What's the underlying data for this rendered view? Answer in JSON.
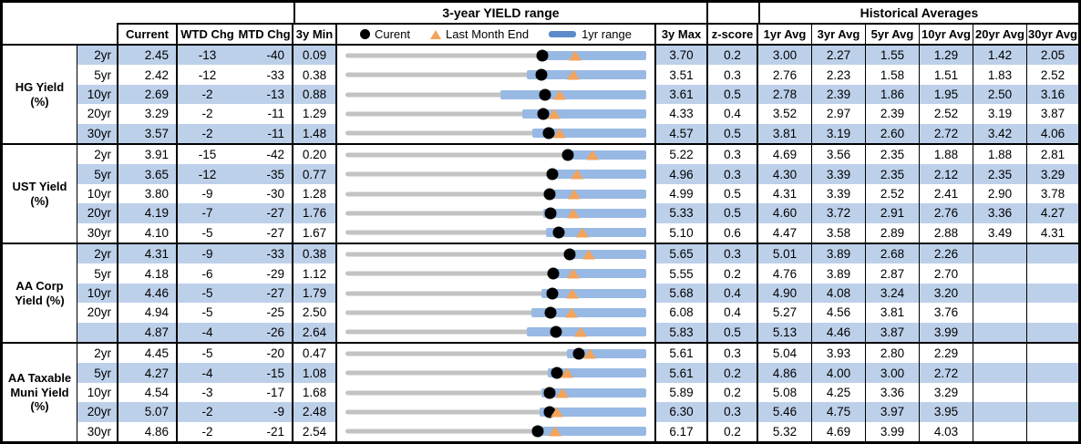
{
  "header": {
    "range_title": "3-year YIELD range",
    "hist_title": "Historical Averages",
    "cols": {
      "current": "Current",
      "wtd": "WTD Chg",
      "mtd": "MTD Chg",
      "min": "3y Min",
      "max": "3y Max",
      "z": "z-score"
    },
    "avg_cols": [
      "1yr Avg",
      "3yr Avg",
      "5yr Avg",
      "10yr Avg",
      "20yr Avg",
      "30yr Avg"
    ],
    "legend": [
      {
        "marker": "black-dot",
        "label": "Curent"
      },
      {
        "marker": "orange-triangle",
        "label": "Last Month End"
      },
      {
        "marker": "blue-bar",
        "label": "1yr range"
      }
    ]
  },
  "colors": {
    "row_shade": "#BDD0EA",
    "range_bar_blue": "#98B9E4",
    "legend_bar_blue": "#5B8BC9",
    "marker_orange": "#F2A35C",
    "track_gray": "#C3C3C3",
    "current_dot": "#000000"
  },
  "chart_data": {
    "type": "table",
    "title": "3-year YIELD range",
    "embedded_chart": "per-row bullet chart scaled from 3y Min to 3y Max: gray full-range line, blue 1yr-range bar, black dot = Current, orange triangle = Last Month End",
    "groups": [
      {
        "label": "HG Yield (%)",
        "rows": [
          {
            "tenor": "2yr",
            "current": "2.45",
            "wtd_chg": "-13",
            "mtd_chg": "-40",
            "min_3y": "0.09",
            "max_3y": "3.70",
            "z_score": "0.2",
            "last_month_end": 2.85,
            "yr1_range": [
              2.41,
              3.7
            ],
            "averages": [
              "3.00",
              "2.27",
              "1.55",
              "1.29",
              "1.42",
              "2.05"
            ]
          },
          {
            "tenor": "5yr",
            "current": "2.42",
            "wtd_chg": "-12",
            "mtd_chg": "-33",
            "min_3y": "0.38",
            "max_3y": "3.51",
            "z_score": "0.3",
            "last_month_end": 2.75,
            "yr1_range": [
              2.27,
              3.51
            ],
            "averages": [
              "2.76",
              "2.23",
              "1.58",
              "1.51",
              "1.83",
              "2.52"
            ]
          },
          {
            "tenor": "10yr",
            "current": "2.69",
            "wtd_chg": "-2",
            "mtd_chg": "-13",
            "min_3y": "0.88",
            "max_3y": "3.61",
            "z_score": "0.5",
            "last_month_end": 2.82,
            "yr1_range": [
              2.29,
              3.61
            ],
            "averages": [
              "2.78",
              "2.39",
              "1.86",
              "1.95",
              "2.50",
              "3.16"
            ]
          },
          {
            "tenor": "20yr",
            "current": "3.29",
            "wtd_chg": "-2",
            "mtd_chg": "-11",
            "min_3y": "1.29",
            "max_3y": "4.33",
            "z_score": "0.4",
            "last_month_end": 3.4,
            "yr1_range": [
              3.08,
              4.33
            ],
            "averages": [
              "3.52",
              "2.97",
              "2.39",
              "2.52",
              "3.19",
              "3.87"
            ]
          },
          {
            "tenor": "30yr",
            "current": "3.57",
            "wtd_chg": "-2",
            "mtd_chg": "-11",
            "min_3y": "1.48",
            "max_3y": "4.57",
            "z_score": "0.5",
            "last_month_end": 3.68,
            "yr1_range": [
              3.4,
              4.57
            ],
            "averages": [
              "3.81",
              "3.19",
              "2.60",
              "2.72",
              "3.42",
              "4.06"
            ]
          }
        ]
      },
      {
        "label": "UST Yield (%)",
        "rows": [
          {
            "tenor": "2yr",
            "current": "3.91",
            "wtd_chg": "-15",
            "mtd_chg": "-42",
            "min_3y": "0.20",
            "max_3y": "5.22",
            "z_score": "0.3",
            "last_month_end": 4.33,
            "yr1_range": [
              3.85,
              5.22
            ],
            "averages": [
              "4.69",
              "3.56",
              "2.35",
              "1.88",
              "1.88",
              "2.81"
            ]
          },
          {
            "tenor": "5yr",
            "current": "3.65",
            "wtd_chg": "-12",
            "mtd_chg": "-35",
            "min_3y": "0.77",
            "max_3y": "4.96",
            "z_score": "0.3",
            "last_month_end": 4.0,
            "yr1_range": [
              3.59,
              4.96
            ],
            "averages": [
              "4.30",
              "3.39",
              "2.35",
              "2.12",
              "2.35",
              "3.29"
            ]
          },
          {
            "tenor": "10yr",
            "current": "3.80",
            "wtd_chg": "-9",
            "mtd_chg": "-30",
            "min_3y": "1.28",
            "max_3y": "4.99",
            "z_score": "0.5",
            "last_month_end": 4.1,
            "yr1_range": [
              3.78,
              4.99
            ],
            "averages": [
              "4.31",
              "3.39",
              "2.52",
              "2.41",
              "2.90",
              "3.78"
            ]
          },
          {
            "tenor": "20yr",
            "current": "4.19",
            "wtd_chg": "-7",
            "mtd_chg": "-27",
            "min_3y": "1.76",
            "max_3y": "5.33",
            "z_score": "0.5",
            "last_month_end": 4.46,
            "yr1_range": [
              4.11,
              5.33
            ],
            "averages": [
              "4.60",
              "3.72",
              "2.91",
              "2.76",
              "3.36",
              "4.27"
            ]
          },
          {
            "tenor": "30yr",
            "current": "4.10",
            "wtd_chg": "-5",
            "mtd_chg": "-27",
            "min_3y": "1.67",
            "max_3y": "5.10",
            "z_score": "0.6",
            "last_month_end": 4.37,
            "yr1_range": [
              3.96,
              5.1
            ],
            "averages": [
              "4.47",
              "3.58",
              "2.89",
              "2.88",
              "3.49",
              "4.31"
            ]
          }
        ]
      },
      {
        "label": "AA Corp Yield (%)",
        "rows": [
          {
            "tenor": "2yr",
            "current": "4.31",
            "wtd_chg": "-9",
            "mtd_chg": "-33",
            "min_3y": "0.38",
            "max_3y": "5.65",
            "z_score": "0.3",
            "last_month_end": 4.64,
            "yr1_range": [
              4.24,
              5.65
            ],
            "averages": [
              "5.01",
              "3.89",
              "2.68",
              "2.26",
              "",
              ""
            ]
          },
          {
            "tenor": "5yr",
            "current": "4.18",
            "wtd_chg": "-6",
            "mtd_chg": "-29",
            "min_3y": "1.12",
            "max_3y": "5.55",
            "z_score": "0.2",
            "last_month_end": 4.47,
            "yr1_range": [
              4.12,
              5.55
            ],
            "averages": [
              "4.76",
              "3.89",
              "2.87",
              "2.70",
              "",
              ""
            ]
          },
          {
            "tenor": "10yr",
            "current": "4.46",
            "wtd_chg": "-5",
            "mtd_chg": "-27",
            "min_3y": "1.79",
            "max_3y": "5.68",
            "z_score": "0.4",
            "last_month_end": 4.73,
            "yr1_range": [
              4.33,
              5.68
            ],
            "averages": [
              "4.90",
              "4.08",
              "3.24",
              "3.20",
              "",
              ""
            ]
          },
          {
            "tenor": "20yr",
            "current": "4.94",
            "wtd_chg": "-5",
            "mtd_chg": "-25",
            "min_3y": "2.50",
            "max_3y": "6.08",
            "z_score": "0.4",
            "last_month_end": 5.19,
            "yr1_range": [
              4.71,
              6.08
            ],
            "averages": [
              "5.27",
              "4.56",
              "3.81",
              "3.76",
              "",
              ""
            ]
          },
          {
            "tenor": "",
            "current": "4.87",
            "wtd_chg": "-4",
            "mtd_chg": "-26",
            "min_3y": "2.64",
            "max_3y": "5.83",
            "z_score": "0.5",
            "last_month_end": 5.13,
            "yr1_range": [
              4.56,
              5.83
            ],
            "averages": [
              "5.13",
              "4.46",
              "3.87",
              "3.99",
              "",
              ""
            ]
          }
        ]
      },
      {
        "label": "AA Taxable Muni Yield (%)",
        "rows": [
          {
            "tenor": "2yr",
            "current": "4.45",
            "wtd_chg": "-5",
            "mtd_chg": "-20",
            "min_3y": "0.47",
            "max_3y": "5.61",
            "z_score": "0.3",
            "last_month_end": 4.65,
            "yr1_range": [
              4.26,
              5.61
            ],
            "averages": [
              "5.04",
              "3.93",
              "2.80",
              "2.29",
              "",
              ""
            ]
          },
          {
            "tenor": "5yr",
            "current": "4.27",
            "wtd_chg": "-4",
            "mtd_chg": "-15",
            "min_3y": "1.08",
            "max_3y": "5.61",
            "z_score": "0.2",
            "last_month_end": 4.42,
            "yr1_range": [
              4.13,
              5.61
            ],
            "averages": [
              "4.86",
              "4.00",
              "3.00",
              "2.72",
              "",
              ""
            ]
          },
          {
            "tenor": "10yr",
            "current": "4.54",
            "wtd_chg": "-3",
            "mtd_chg": "-17",
            "min_3y": "1.68",
            "max_3y": "5.89",
            "z_score": "0.2",
            "last_month_end": 4.71,
            "yr1_range": [
              4.42,
              5.89
            ],
            "averages": [
              "5.08",
              "4.25",
              "3.36",
              "3.29",
              "",
              ""
            ]
          },
          {
            "tenor": "20yr",
            "current": "5.07",
            "wtd_chg": "-2",
            "mtd_chg": "-9",
            "min_3y": "2.48",
            "max_3y": "6.30",
            "z_score": "0.3",
            "last_month_end": 5.16,
            "yr1_range": [
              4.95,
              6.3
            ],
            "averages": [
              "5.46",
              "4.75",
              "3.97",
              "3.95",
              "",
              ""
            ]
          },
          {
            "tenor": "30yr",
            "current": "4.86",
            "wtd_chg": "-2",
            "mtd_chg": "-21",
            "min_3y": "2.54",
            "max_3y": "6.17",
            "z_score": "0.2",
            "last_month_end": 5.07,
            "yr1_range": [
              4.8,
              6.17
            ],
            "averages": [
              "5.32",
              "4.69",
              "3.99",
              "4.03",
              "",
              ""
            ]
          }
        ]
      }
    ]
  }
}
